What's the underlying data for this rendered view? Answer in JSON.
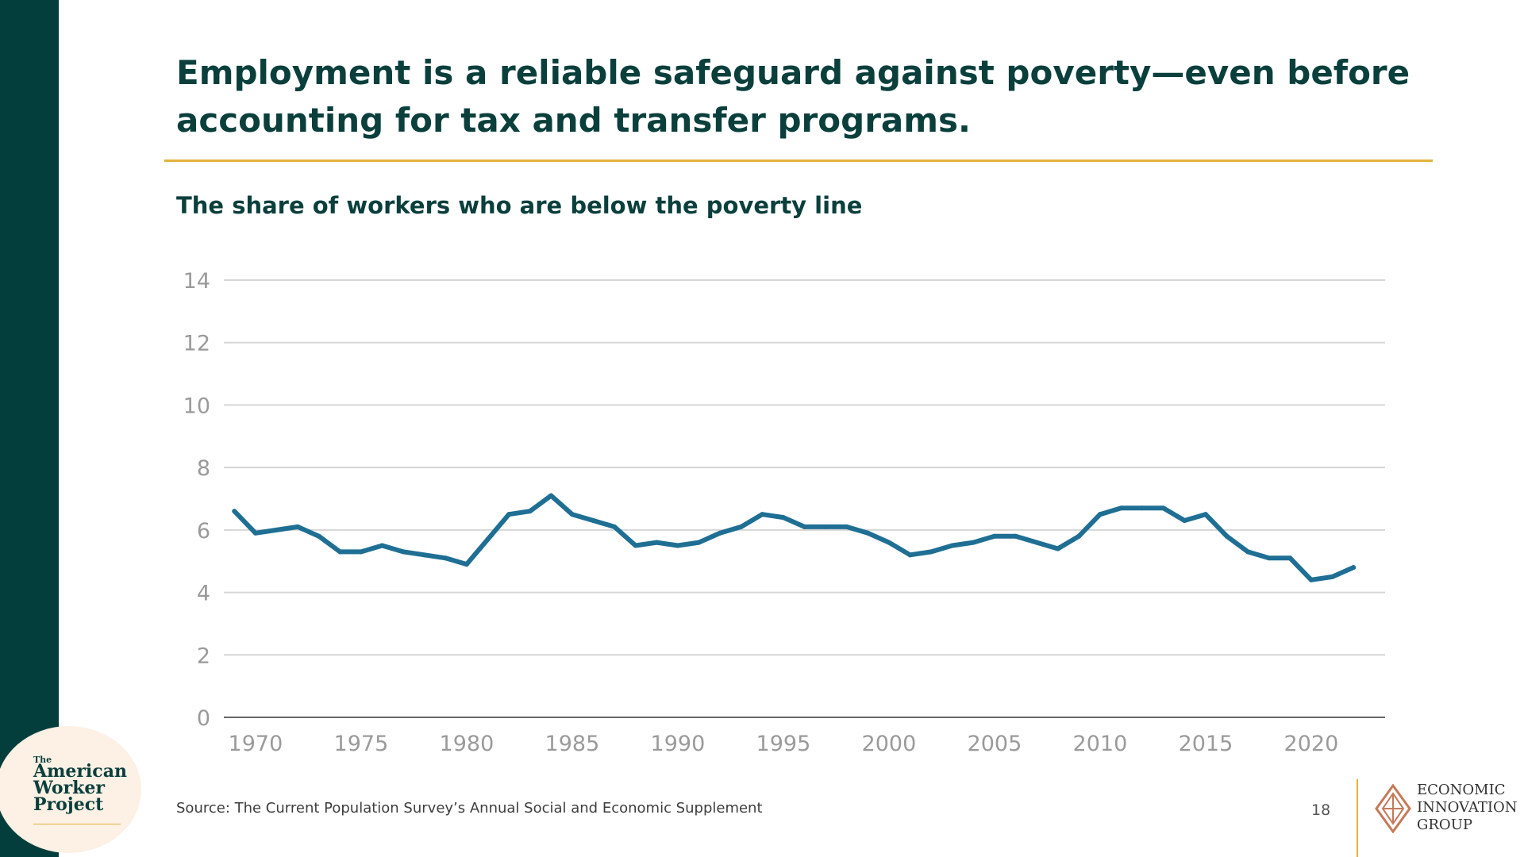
{
  "slide": {
    "title": "Employment is a reliable safeguard against poverty—even before accounting for tax and transfer programs.",
    "subtitle": "The share of workers who are below the poverty line",
    "source": "Source: The Current Population Survey’s Annual Social and Economic Supplement",
    "page_number": "18",
    "accent_color": "#e2b33c",
    "brand_color": "#033e3c"
  },
  "badge": {
    "the": "The",
    "line1": "American",
    "line2": "Worker",
    "line3": "Project"
  },
  "eig": {
    "line1": "ECONOMIC",
    "line2": "INNOVATION",
    "line3": "GROUP",
    "icon": "diamond-emblem-icon"
  },
  "chart_data": {
    "type": "line",
    "title": "",
    "xlabel": "",
    "ylabel": "",
    "xlim": [
      1968.5,
      2023.5
    ],
    "ylim": [
      0,
      14
    ],
    "yticks": [
      0,
      2,
      4,
      6,
      8,
      10,
      12,
      14
    ],
    "xticks": [
      1970,
      1975,
      1980,
      1985,
      1990,
      1995,
      2000,
      2005,
      2010,
      2015,
      2020
    ],
    "grid": true,
    "line_color": "#1f6f94",
    "series": [
      {
        "x": [
          1969,
          1970,
          1971,
          1972,
          1973,
          1974,
          1975,
          1976,
          1977,
          1978,
          1979,
          1980,
          1981,
          1982,
          1983,
          1984,
          1985,
          1986,
          1987,
          1988,
          1989,
          1990,
          1991,
          1992,
          1993,
          1994,
          1995,
          1996,
          1997,
          1998,
          1999,
          2000,
          2001,
          2002,
          2003,
          2004,
          2005,
          2006,
          2007,
          2008,
          2009,
          2010,
          2011,
          2012,
          2013,
          2014,
          2015,
          2016,
          2017,
          2018,
          2019,
          2020,
          2021,
          2022
        ],
        "values": [
          6.6,
          5.9,
          6.0,
          6.1,
          5.8,
          5.3,
          5.3,
          5.5,
          5.3,
          5.2,
          5.1,
          4.9,
          5.7,
          6.5,
          6.6,
          7.1,
          6.5,
          6.3,
          6.1,
          5.5,
          5.6,
          5.5,
          5.6,
          5.9,
          6.1,
          6.5,
          6.4,
          6.1,
          6.1,
          6.1,
          5.9,
          5.6,
          5.2,
          5.3,
          5.5,
          5.6,
          5.8,
          5.8,
          5.6,
          5.4,
          5.8,
          6.5,
          6.7,
          6.7,
          6.7,
          6.3,
          6.5,
          5.8,
          5.3,
          5.1,
          5.1,
          4.4,
          4.5,
          4.8
        ]
      }
    ]
  }
}
